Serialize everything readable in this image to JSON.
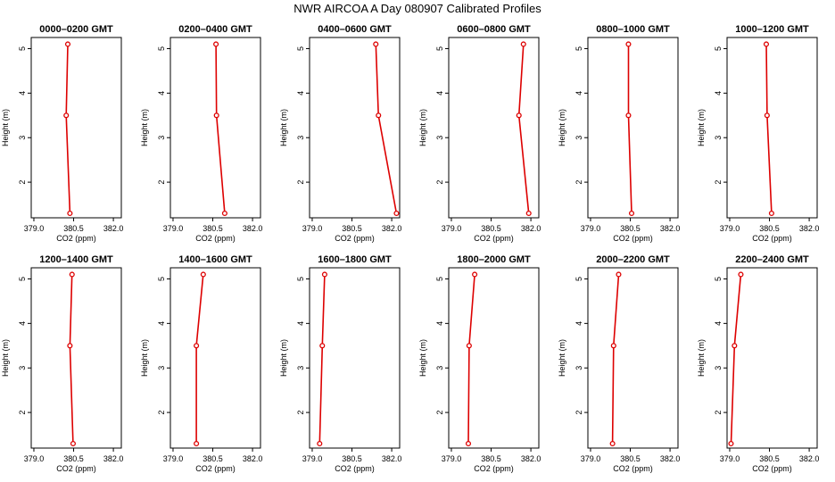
{
  "title": "NWR AIRCOA A  Day 080907  Calibrated Profiles",
  "style": {
    "line_color": "#dd0000",
    "marker": "open-circle"
  },
  "chart_data": [
    {
      "type": "line",
      "title": "0000–0200 GMT",
      "xlabel": "CO2 (ppm)",
      "ylabel": "Height (m)",
      "xlim": [
        378.9,
        382.3
      ],
      "ylim": [
        1.2,
        5.25
      ],
      "x_ticks": [
        "379.0",
        "380.5",
        "382.0"
      ],
      "y_ticks": [
        "2",
        "3",
        "4",
        "5"
      ],
      "series": [
        {
          "x": [
            380.28,
            380.22,
            380.36
          ],
          "y": [
            5.1,
            3.5,
            1.3
          ]
        }
      ]
    },
    {
      "type": "line",
      "title": "0200–0400 GMT",
      "xlabel": "CO2 (ppm)",
      "ylabel": "Height (m)",
      "xlim": [
        378.9,
        382.3
      ],
      "ylim": [
        1.2,
        5.25
      ],
      "x_ticks": [
        "379.0",
        "380.5",
        "382.0"
      ],
      "y_ticks": [
        "2",
        "3",
        "4",
        "5"
      ],
      "series": [
        {
          "x": [
            380.62,
            380.64,
            380.95
          ],
          "y": [
            5.1,
            3.5,
            1.3
          ]
        }
      ]
    },
    {
      "type": "line",
      "title": "0400–0600 GMT",
      "xlabel": "CO2 (ppm)",
      "ylabel": "Height (m)",
      "xlim": [
        378.9,
        382.3
      ],
      "ylim": [
        1.2,
        5.25
      ],
      "x_ticks": [
        "379.0",
        "380.5",
        "382.0"
      ],
      "y_ticks": [
        "2",
        "3",
        "4",
        "5"
      ],
      "series": [
        {
          "x": [
            381.4,
            381.5,
            382.18
          ],
          "y": [
            5.1,
            3.5,
            1.3
          ]
        }
      ]
    },
    {
      "type": "line",
      "title": "0600–0800 GMT",
      "xlabel": "CO2 (ppm)",
      "ylabel": "Height (m)",
      "xlim": [
        378.9,
        382.3
      ],
      "ylim": [
        1.2,
        5.25
      ],
      "x_ticks": [
        "379.0",
        "380.5",
        "382.0"
      ],
      "y_ticks": [
        "2",
        "3",
        "4",
        "5"
      ],
      "series": [
        {
          "x": [
            381.72,
            381.55,
            381.92
          ],
          "y": [
            5.1,
            3.5,
            1.3
          ]
        }
      ]
    },
    {
      "type": "line",
      "title": "0800–1000 GMT",
      "xlabel": "CO2 (ppm)",
      "ylabel": "Height (m)",
      "xlim": [
        378.9,
        382.3
      ],
      "ylim": [
        1.2,
        5.25
      ],
      "x_ticks": [
        "379.0",
        "380.5",
        "382.0"
      ],
      "y_ticks": [
        "2",
        "3",
        "4",
        "5"
      ],
      "series": [
        {
          "x": [
            380.43,
            380.43,
            380.55
          ],
          "y": [
            5.1,
            3.5,
            1.3
          ]
        }
      ]
    },
    {
      "type": "line",
      "title": "1000–1200 GMT",
      "xlabel": "CO2 (ppm)",
      "ylabel": "Height (m)",
      "xlim": [
        378.9,
        382.3
      ],
      "ylim": [
        1.2,
        5.25
      ],
      "x_ticks": [
        "379.0",
        "380.5",
        "382.0"
      ],
      "y_ticks": [
        "2",
        "3",
        "4",
        "5"
      ],
      "series": [
        {
          "x": [
            380.38,
            380.41,
            380.58
          ],
          "y": [
            5.1,
            3.5,
            1.3
          ]
        }
      ]
    },
    {
      "type": "line",
      "title": "1200–1400 GMT",
      "xlabel": "CO2 (ppm)",
      "ylabel": "Height (m)",
      "xlim": [
        378.9,
        382.3
      ],
      "ylim": [
        1.2,
        5.25
      ],
      "x_ticks": [
        "379.0",
        "380.5",
        "382.0"
      ],
      "y_ticks": [
        "2",
        "3",
        "4",
        "5"
      ],
      "series": [
        {
          "x": [
            380.44,
            380.36,
            380.48
          ],
          "y": [
            5.1,
            3.5,
            1.3
          ]
        }
      ]
    },
    {
      "type": "line",
      "title": "1400–1600 GMT",
      "xlabel": "CO2 (ppm)",
      "ylabel": "Height (m)",
      "xlim": [
        378.9,
        382.3
      ],
      "ylim": [
        1.2,
        5.25
      ],
      "x_ticks": [
        "379.0",
        "380.5",
        "382.0"
      ],
      "y_ticks": [
        "2",
        "3",
        "4",
        "5"
      ],
      "series": [
        {
          "x": [
            380.14,
            379.88,
            379.88
          ],
          "y": [
            5.1,
            3.5,
            1.3
          ]
        }
      ]
    },
    {
      "type": "line",
      "title": "1600–1800 GMT",
      "xlabel": "CO2 (ppm)",
      "ylabel": "Height (m)",
      "xlim": [
        378.9,
        382.3
      ],
      "ylim": [
        1.2,
        5.25
      ],
      "x_ticks": [
        "379.0",
        "380.5",
        "382.0"
      ],
      "y_ticks": [
        "2",
        "3",
        "4",
        "5"
      ],
      "series": [
        {
          "x": [
            379.47,
            379.38,
            379.28
          ],
          "y": [
            5.1,
            3.5,
            1.3
          ]
        }
      ]
    },
    {
      "type": "line",
      "title": "1800–2000 GMT",
      "xlabel": "CO2 (ppm)",
      "ylabel": "Height (m)",
      "xlim": [
        378.9,
        382.3
      ],
      "ylim": [
        1.2,
        5.25
      ],
      "x_ticks": [
        "379.0",
        "380.5",
        "382.0"
      ],
      "y_ticks": [
        "2",
        "3",
        "4",
        "5"
      ],
      "series": [
        {
          "x": [
            379.88,
            379.67,
            379.64
          ],
          "y": [
            5.1,
            3.5,
            1.3
          ]
        }
      ]
    },
    {
      "type": "line",
      "title": "2000–2200 GMT",
      "xlabel": "CO2 (ppm)",
      "ylabel": "Height (m)",
      "xlim": [
        378.9,
        382.3
      ],
      "ylim": [
        1.2,
        5.25
      ],
      "x_ticks": [
        "379.0",
        "380.5",
        "382.0"
      ],
      "y_ticks": [
        "2",
        "3",
        "4",
        "5"
      ],
      "series": [
        {
          "x": [
            380.06,
            379.87,
            379.83
          ],
          "y": [
            5.1,
            3.5,
            1.3
          ]
        }
      ]
    },
    {
      "type": "line",
      "title": "2200–2400 GMT",
      "xlabel": "CO2 (ppm)",
      "ylabel": "Height (m)",
      "xlim": [
        378.9,
        382.3
      ],
      "ylim": [
        1.2,
        5.25
      ],
      "x_ticks": [
        "379.0",
        "380.5",
        "382.0"
      ],
      "y_ticks": [
        "2",
        "3",
        "4",
        "5"
      ],
      "series": [
        {
          "x": [
            379.42,
            379.18,
            379.05
          ],
          "y": [
            5.1,
            3.5,
            1.3
          ]
        }
      ]
    }
  ]
}
